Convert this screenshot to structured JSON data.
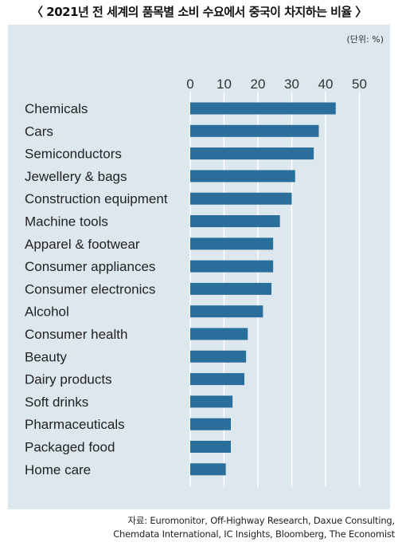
{
  "title": "〈 2021년 전 세계의 품목별 소비 수요에서 중국이 차지하는 비율 〉",
  "unit_note": "(단위: %)",
  "source_lines": [
    "자료: Euromonitor, Off-Highway Research, Daxue Consulting,",
    "Chemdata International, IC Insights, Bloomberg, The Economist"
  ],
  "colors": {
    "bar": "#2a6f9b",
    "panel": "#dde7ee",
    "grid": "#ffffff"
  },
  "chart_data": {
    "type": "bar",
    "orientation": "horizontal",
    "xlim": [
      0,
      50
    ],
    "ticks": [
      0,
      10,
      20,
      30,
      40,
      50
    ],
    "tick_labels": [
      "0",
      "10",
      "20",
      "30",
      "40",
      "50"
    ],
    "grid": true,
    "categories": [
      "Chemicals",
      "Cars",
      "Semiconductors",
      "Jewellery & bags",
      "Construction equipment",
      "Machine tools",
      "Apparel & footwear",
      "Consumer appliances",
      "Consumer electronics",
      "Alcohol",
      "Consumer health",
      "Beauty",
      "Dairy products",
      "Soft drinks",
      "Pharmaceuticals",
      "Packaged food",
      "Home care"
    ],
    "values": [
      43,
      38,
      36.5,
      31,
      30,
      26.5,
      24.5,
      24.5,
      24,
      21.5,
      17,
      16.5,
      16,
      12.5,
      12,
      12,
      10.5
    ]
  }
}
